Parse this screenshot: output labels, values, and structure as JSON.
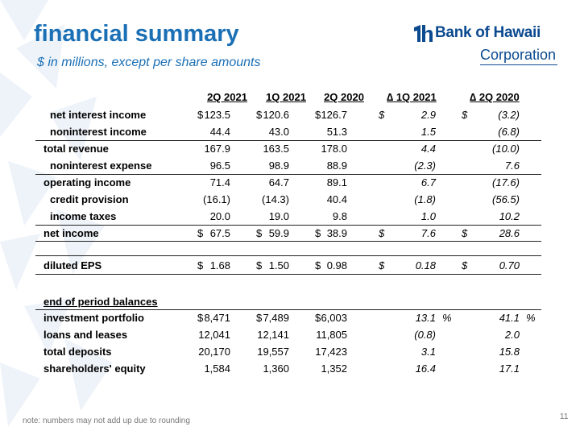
{
  "header": {
    "title": "financial summary",
    "subtitle": "$ in millions, except per share amounts"
  },
  "logo": {
    "name": "Bank of Hawaii",
    "sub": "Corporation"
  },
  "table": {
    "columns": [
      "2Q 2021",
      "1Q 2021",
      "2Q 2020",
      "∆ 1Q 2021",
      "∆ 2Q 2020"
    ],
    "rows": [
      {
        "label": "net interest income",
        "indent": true,
        "c1": "123.5",
        "c2": "120.6",
        "c3": "126.7",
        "c4": "2.9",
        "c5": "(3.2)",
        "dollar": true
      },
      {
        "label": "noninterest income",
        "indent": true,
        "c1": "44.4",
        "c2": "43.0",
        "c3": "51.3",
        "c4": "1.5",
        "c5": "(6.8)"
      },
      {
        "label": "total revenue",
        "indent": false,
        "c1": "167.9",
        "c2": "163.5",
        "c3": "178.0",
        "c4": "4.4",
        "c5": "(10.0)"
      },
      {
        "label": "noninterest expense",
        "indent": true,
        "c1": "96.5",
        "c2": "98.9",
        "c3": "88.9",
        "c4": "(2.3)",
        "c5": "7.6"
      },
      {
        "label": "operating income",
        "indent": false,
        "c1": "71.4",
        "c2": "64.7",
        "c3": "89.1",
        "c4": "6.7",
        "c5": "(17.6)"
      },
      {
        "label": "credit provision",
        "indent": true,
        "c1": "(16.1)",
        "c2": "(14.3)",
        "c3": "40.4",
        "c4": "(1.8)",
        "c5": "(56.5)"
      },
      {
        "label": "income taxes",
        "indent": true,
        "c1": "20.0",
        "c2": "19.0",
        "c3": "9.8",
        "c4": "1.0",
        "c5": "10.2"
      },
      {
        "label": "net income",
        "indent": false,
        "c1": "67.5",
        "c2": "59.9",
        "c3": "38.9",
        "c4": "7.6",
        "c5": "28.6",
        "dollar": true
      },
      {
        "label": "diluted EPS",
        "indent": false,
        "c1": "1.68",
        "c2": "1.50",
        "c3": "0.98",
        "c4": "0.18",
        "c5": "0.70",
        "dollar": true
      },
      {
        "label": "end of period balances",
        "indent": false,
        "c1": "",
        "c2": "",
        "c3": "",
        "c4": "",
        "c5": ""
      },
      {
        "label": "investment portfolio",
        "indent": false,
        "c1": "8,471",
        "c2": "7,489",
        "c3": "6,003",
        "c4": "13.1",
        "c5": "41.1",
        "dollar": true,
        "pct": true
      },
      {
        "label": "loans and leases",
        "indent": false,
        "c1": "12,041",
        "c2": "12,141",
        "c3": "11,805",
        "c4": "(0.8)",
        "c5": "2.0"
      },
      {
        "label": "total deposits",
        "indent": false,
        "c1": "20,170",
        "c2": "19,557",
        "c3": "17,423",
        "c4": "3.1",
        "c5": "15.8"
      },
      {
        "label": "shareholders' equity",
        "indent": false,
        "c1": "1,584",
        "c2": "1,360",
        "c3": "1,352",
        "c4": "16.4",
        "c5": "17.1"
      }
    ],
    "dollar_sign": "$",
    "percent_sign": "%"
  },
  "footer": {
    "note": "note:  numbers may not add up due to rounding",
    "page": "11"
  }
}
